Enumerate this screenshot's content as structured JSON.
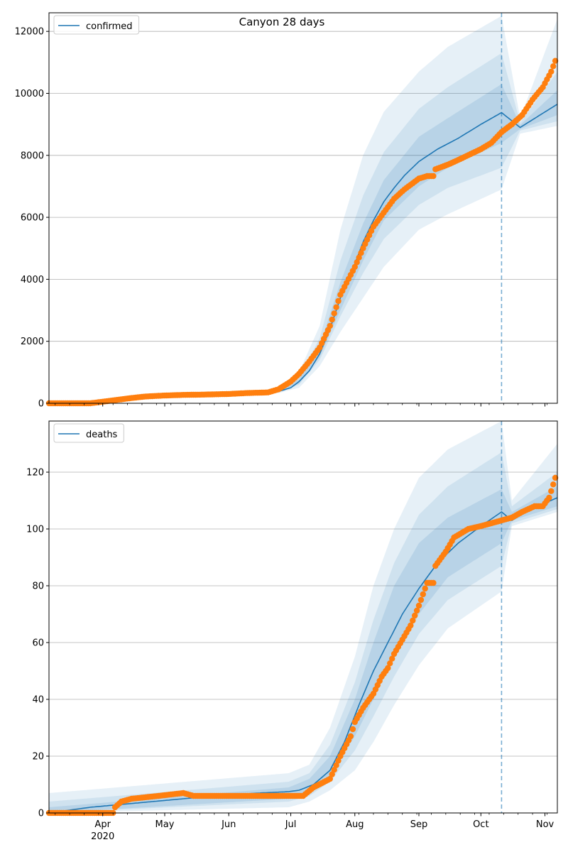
{
  "figure": {
    "title": "Canyon 28 days"
  },
  "chart_data": [
    {
      "type": "line",
      "legend": {
        "label": "confirmed",
        "placement": "top-left"
      },
      "xlim": [
        "2020-03-06",
        "2020-11-07"
      ],
      "ylim": [
        0,
        12600
      ],
      "yticks": [
        0,
        2000,
        4000,
        6000,
        8000,
        10000,
        12000
      ],
      "grid": "y",
      "forecast_start": "2020-10-11",
      "colors": {
        "model": "#1f77b4",
        "observed": "#ff7f0e",
        "band": "#1f77b4"
      },
      "model_median": {
        "dates": [
          "2020-03-06",
          "2020-03-25",
          "2020-04-15",
          "2020-05-01",
          "2020-05-15",
          "2020-06-01",
          "2020-06-15",
          "2020-06-25",
          "2020-07-01",
          "2020-07-05",
          "2020-07-10",
          "2020-07-15",
          "2020-07-20",
          "2020-07-25",
          "2020-08-01",
          "2020-08-05",
          "2020-08-10",
          "2020-08-15",
          "2020-08-20",
          "2020-08-25",
          "2020-09-01",
          "2020-09-10",
          "2020-09-20",
          "2020-10-01",
          "2020-10-11",
          "2020-10-20",
          "2020-11-07"
        ],
        "values": [
          0,
          20,
          150,
          230,
          260,
          290,
          330,
          380,
          500,
          700,
          1050,
          1600,
          2400,
          3400,
          4500,
          5200,
          5900,
          6500,
          6950,
          7350,
          7800,
          8200,
          8550,
          9000,
          9380,
          8900,
          9650
        ]
      },
      "bands": {
        "dates": [
          "2020-03-06",
          "2020-06-25",
          "2020-07-05",
          "2020-07-15",
          "2020-07-25",
          "2020-08-05",
          "2020-08-15",
          "2020-09-01",
          "2020-09-15",
          "2020-10-11",
          "2020-10-20",
          "2020-11-07"
        ],
        "outer_upper": [
          0,
          430,
          1000,
          2500,
          5600,
          8000,
          9400,
          10700,
          11500,
          12500,
          9200,
          12400
        ],
        "outer_lower": [
          0,
          330,
          500,
          1200,
          2300,
          3400,
          4400,
          5600,
          6100,
          6900,
          8700,
          8950
        ],
        "mid_upper": [
          0,
          410,
          850,
          2100,
          4600,
          6700,
          8100,
          9500,
          10200,
          11300,
          9050,
          10700
        ],
        "mid_lower": [
          0,
          350,
          600,
          1400,
          2800,
          4200,
          5300,
          6400,
          6950,
          7600,
          8800,
          9100
        ],
        "inner_upper": [
          0,
          395,
          780,
          1850,
          3900,
          5800,
          7200,
          8600,
          9200,
          10300,
          8980,
          10100
        ],
        "inner_lower": [
          0,
          365,
          640,
          1500,
          3000,
          4600,
          5900,
          7000,
          7600,
          8400,
          8850,
          9300
        ]
      },
      "observed": {
        "dates": [
          "2020-03-06",
          "2020-03-26",
          "2020-04-01",
          "2020-04-08",
          "2020-04-15",
          "2020-04-22",
          "2020-05-01",
          "2020-05-10",
          "2020-05-20",
          "2020-06-01",
          "2020-06-10",
          "2020-06-20",
          "2020-06-25",
          "2020-07-01",
          "2020-07-05",
          "2020-07-10",
          "2020-07-15",
          "2020-07-20",
          "2020-07-25",
          "2020-08-01",
          "2020-08-05",
          "2020-08-10",
          "2020-08-15",
          "2020-08-20",
          "2020-08-25",
          "2020-09-01",
          "2020-09-05",
          "2020-09-08",
          "2020-09-09",
          "2020-09-15",
          "2020-09-20",
          "2020-10-01",
          "2020-10-06",
          "2020-10-11",
          "2020-10-16",
          "2020-10-21",
          "2020-10-26",
          "2020-10-31",
          "2020-11-04",
          "2020-11-06"
        ],
        "values": [
          0,
          0,
          50,
          110,
          170,
          220,
          250,
          270,
          280,
          300,
          330,
          350,
          450,
          700,
          950,
          1350,
          1800,
          2500,
          3500,
          4400,
          5000,
          5700,
          6150,
          6600,
          6900,
          7250,
          7330,
          7330,
          7550,
          7700,
          7850,
          8200,
          8400,
          8750,
          9000,
          9300,
          9800,
          10200,
          10700,
          11050
        ]
      }
    },
    {
      "type": "line",
      "legend": {
        "label": "deaths",
        "placement": "top-left"
      },
      "xlim": [
        "2020-03-06",
        "2020-11-07"
      ],
      "xticks_major": [
        {
          "date": "2020-04-01",
          "label": "Apr",
          "sublabel": "2020"
        },
        {
          "date": "2020-05-01",
          "label": "May"
        },
        {
          "date": "2020-06-01",
          "label": "Jun"
        },
        {
          "date": "2020-07-01",
          "label": "Jul"
        },
        {
          "date": "2020-08-01",
          "label": "Aug"
        },
        {
          "date": "2020-09-01",
          "label": "Sep"
        },
        {
          "date": "2020-10-01",
          "label": "Oct"
        },
        {
          "date": "2020-11-01",
          "label": "Nov"
        }
      ],
      "ylim": [
        0,
        138
      ],
      "yticks": [
        0,
        20,
        40,
        60,
        80,
        100,
        120
      ],
      "grid": "y",
      "forecast_start": "2020-10-11",
      "colors": {
        "model": "#1f77b4",
        "observed": "#ff7f0e",
        "band": "#1f77b4"
      },
      "model_median": {
        "dates": [
          "2020-03-06",
          "2020-03-26",
          "2020-04-10",
          "2020-04-25",
          "2020-05-10",
          "2020-05-25",
          "2020-06-15",
          "2020-06-30",
          "2020-07-05",
          "2020-07-12",
          "2020-07-20",
          "2020-07-27",
          "2020-08-03",
          "2020-08-10",
          "2020-08-17",
          "2020-08-24",
          "2020-09-01",
          "2020-09-10",
          "2020-09-20",
          "2020-10-01",
          "2020-10-11",
          "2020-10-16",
          "2020-10-25",
          "2020-11-07"
        ],
        "values": [
          0,
          2,
          3,
          4,
          5,
          6,
          7,
          7.5,
          8,
          10,
          15,
          25,
          38,
          50,
          60,
          70,
          79,
          88,
          95,
          101,
          106,
          103,
          107,
          111
        ]
      },
      "bands": {
        "dates": [
          "2020-03-06",
          "2020-06-30",
          "2020-07-10",
          "2020-07-20",
          "2020-08-01",
          "2020-08-10",
          "2020-08-20",
          "2020-09-01",
          "2020-09-15",
          "2020-10-11",
          "2020-10-16",
          "2020-11-07"
        ],
        "outer_upper": [
          7,
          14,
          17,
          30,
          55,
          80,
          100,
          118,
          128,
          138,
          110,
          130
        ],
        "outer_lower": [
          0,
          2,
          4,
          8,
          15,
          25,
          38,
          52,
          65,
          78,
          101,
          106
        ],
        "mid_upper": [
          4,
          11,
          14,
          24,
          46,
          68,
          88,
          105,
          115,
          127,
          108,
          120
        ],
        "mid_lower": [
          0,
          4,
          6,
          11,
          22,
          34,
          48,
          63,
          75,
          87,
          102,
          107
        ],
        "inner_upper": [
          2,
          9,
          12,
          20,
          40,
          60,
          80,
          95,
          104,
          114,
          106,
          115
        ],
        "inner_lower": [
          0,
          5,
          7,
          13,
          27,
          40,
          55,
          70,
          83,
          95,
          103,
          108
        ]
      },
      "observed": {
        "dates": [
          "2020-03-06",
          "2020-04-06",
          "2020-04-07",
          "2020-04-10",
          "2020-04-15",
          "2020-04-28",
          "2020-05-10",
          "2020-05-15",
          "2020-06-01",
          "2020-06-15",
          "2020-07-01",
          "2020-07-05",
          "2020-07-07",
          "2020-07-12",
          "2020-07-20",
          "2020-07-25",
          "2020-07-30",
          "2020-08-01",
          "2020-08-05",
          "2020-08-10",
          "2020-08-14",
          "2020-08-17",
          "2020-08-20",
          "2020-08-24",
          "2020-08-28",
          "2020-09-01",
          "2020-09-05",
          "2020-09-08",
          "2020-09-09",
          "2020-09-14",
          "2020-09-18",
          "2020-09-25",
          "2020-10-01",
          "2020-10-06",
          "2020-10-11",
          "2020-10-16",
          "2020-10-21",
          "2020-10-27",
          "2020-10-31",
          "2020-11-03",
          "2020-11-06"
        ],
        "values": [
          0,
          0,
          2,
          4,
          5,
          6,
          7,
          6,
          6,
          6,
          6,
          6,
          6,
          9,
          12,
          20,
          27,
          32,
          37,
          42,
          48,
          51,
          56,
          61,
          66,
          73,
          81,
          81,
          87,
          92,
          97,
          100,
          101,
          102,
          103,
          104,
          106,
          108,
          108,
          111,
          118
        ]
      }
    }
  ]
}
